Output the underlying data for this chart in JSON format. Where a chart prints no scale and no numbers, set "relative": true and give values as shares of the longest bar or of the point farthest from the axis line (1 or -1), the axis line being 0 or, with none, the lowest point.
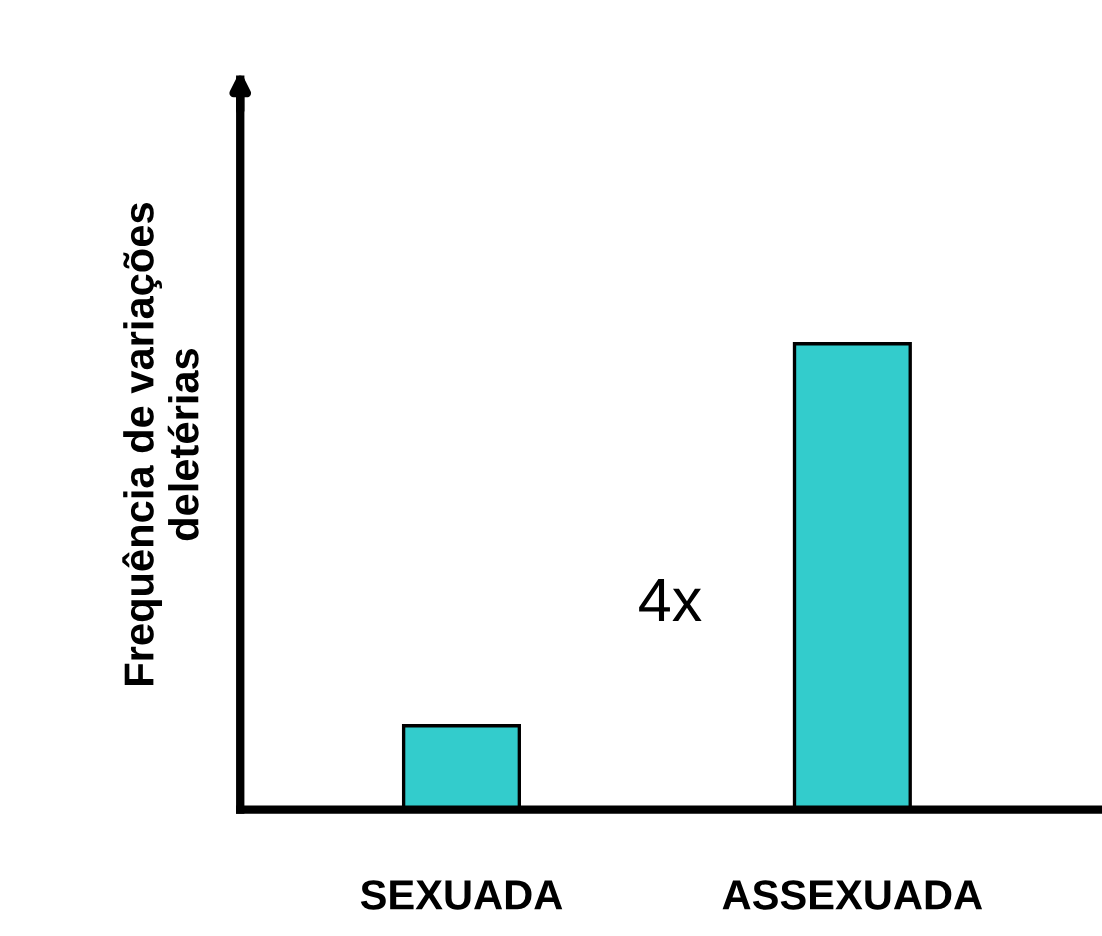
{
  "chart_data": {
    "type": "bar",
    "ylabel": "Frequência de variações\ndeletérias",
    "categories": [
      "SEXUADA",
      "ASSEXUADA"
    ],
    "values": [
      0.18,
      1
    ],
    "color": "#33cccc",
    "relative": true,
    "annotations": [
      "4x"
    ],
    "grid": false,
    "legend": false
  }
}
